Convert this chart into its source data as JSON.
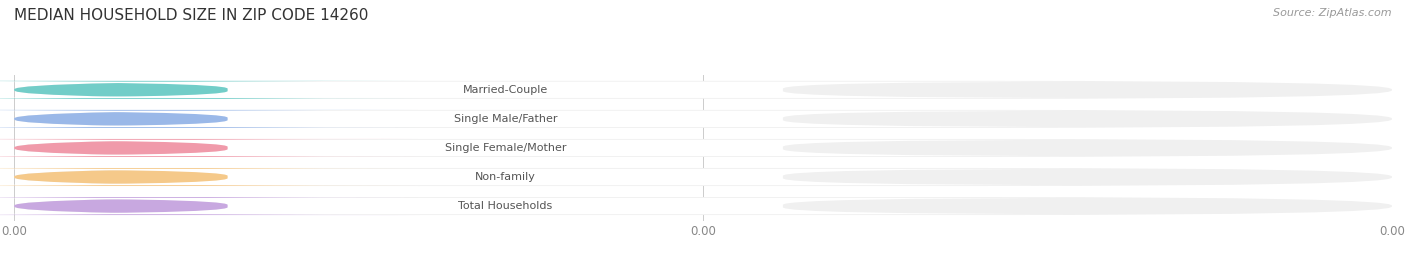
{
  "title": "MEDIAN HOUSEHOLD SIZE IN ZIP CODE 14260",
  "categories": [
    "Married-Couple",
    "Single Male/Father",
    "Single Female/Mother",
    "Non-family",
    "Total Households"
  ],
  "values": [
    0.0,
    0.0,
    0.0,
    0.0,
    0.0
  ],
  "bar_colors": [
    "#72cdc8",
    "#9ab8e8",
    "#f09aaa",
    "#f5c98a",
    "#c8a8e0"
  ],
  "background_color": "#ffffff",
  "row_bg_color": "#f0f0f0",
  "title_fontsize": 11,
  "source_text": "Source: ZipAtlas.com",
  "source_fontsize": 8
}
